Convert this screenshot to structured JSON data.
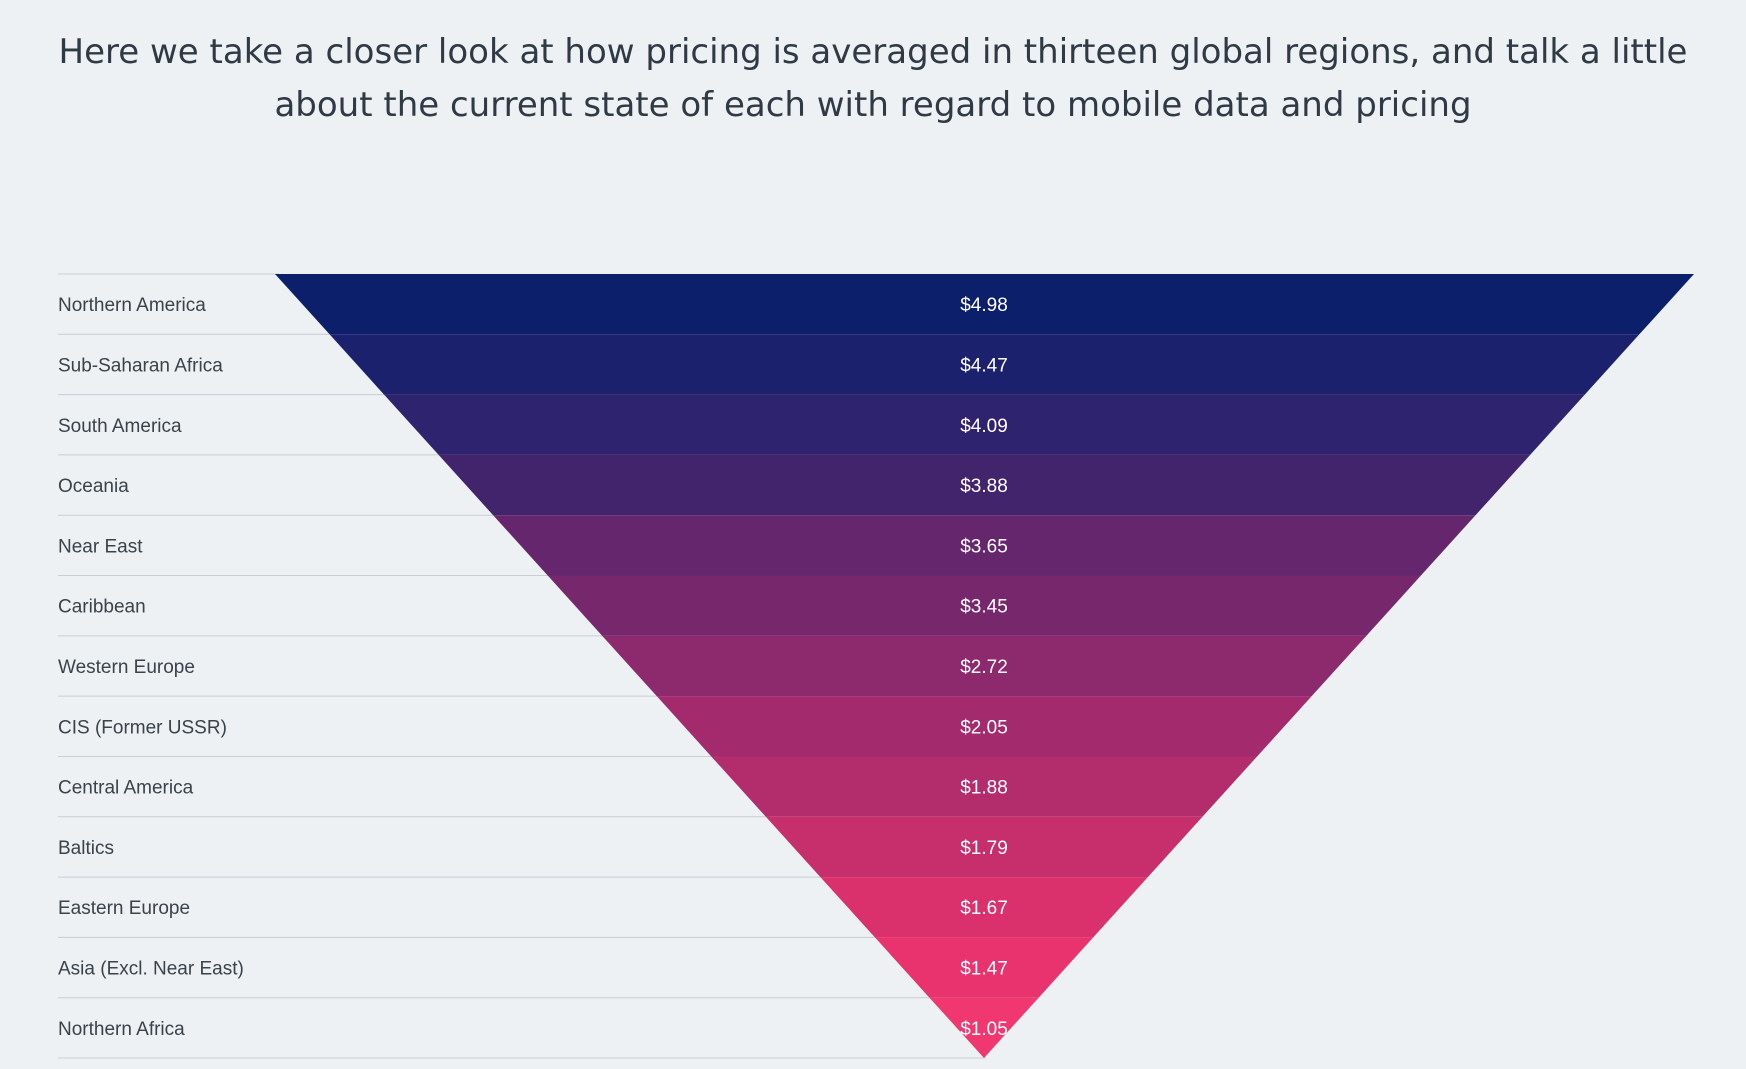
{
  "header": {
    "title": "Here we take a closer look at how pricing is averaged in thirteen global regions, and talk a little about the current state of each with regard to mobile data and pricing"
  },
  "chart_data": {
    "type": "funnel",
    "title": "",
    "categories": [
      "Northern America",
      "Sub-Saharan Africa",
      "South America",
      "Oceania",
      "Near East",
      "Caribbean",
      "Western Europe",
      "CIS (Former USSR)",
      "Central America",
      "Baltics",
      "Eastern Europe",
      "Asia (Excl. Near East)",
      "Northern Africa"
    ],
    "values": [
      4.98,
      4.47,
      4.09,
      3.88,
      3.65,
      3.45,
      2.72,
      2.05,
      1.88,
      1.79,
      1.67,
      1.47,
      1.05
    ],
    "value_labels": [
      "$4.98",
      "$4.47",
      "$4.09",
      "$3.88",
      "$3.65",
      "$3.45",
      "$2.72",
      "$2.05",
      "$1.88",
      "$1.79",
      "$1.67",
      "$1.47",
      "$1.05"
    ],
    "colors": [
      "#0b1f6b",
      "#1c216d",
      "#2e236f",
      "#42246d",
      "#65266d",
      "#77286d",
      "#8d296d",
      "#a22a6d",
      "#b32c6c",
      "#c72f6c",
      "#da316d",
      "#e8336e",
      "#f0376f"
    ]
  }
}
